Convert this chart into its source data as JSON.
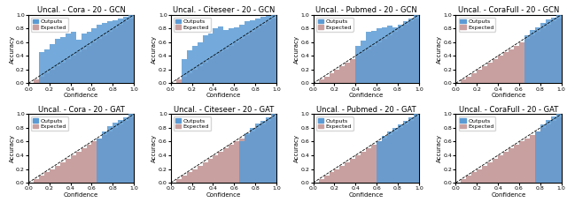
{
  "panels": [
    {
      "title": "Uncal. - Cora - 20 - GCN",
      "outputs": [
        0.0,
        0.0,
        0.45,
        0.5,
        0.57,
        0.65,
        0.68,
        0.72,
        0.75,
        0.63,
        0.72,
        0.75,
        0.8,
        0.85,
        0.88,
        0.9,
        0.92,
        0.95,
        0.97,
        1.0
      ],
      "expected": [
        0.0,
        0.05,
        0.1,
        0.15,
        0.2,
        0.25,
        0.3,
        0.35,
        0.4,
        0.45,
        0.5,
        0.55,
        0.6,
        0.65,
        0.7,
        0.75,
        0.8,
        0.85,
        0.9,
        0.95
      ]
    },
    {
      "title": "Uncal. - Citeseer - 20 - GCN",
      "outputs": [
        0.0,
        0.0,
        0.35,
        0.48,
        0.55,
        0.6,
        0.7,
        0.73,
        0.8,
        0.83,
        0.78,
        0.8,
        0.82,
        0.86,
        0.9,
        0.92,
        0.94,
        0.97,
        0.98,
        1.0
      ],
      "expected": [
        0.0,
        0.05,
        0.1,
        0.15,
        0.2,
        0.25,
        0.3,
        0.35,
        0.4,
        0.45,
        0.5,
        0.55,
        0.6,
        0.65,
        0.7,
        0.75,
        0.8,
        0.85,
        0.9,
        0.95
      ]
    },
    {
      "title": "Uncal. - Pubmed - 20 - GCN",
      "outputs": [
        0.0,
        0.0,
        0.0,
        0.0,
        0.0,
        0.0,
        0.0,
        0.0,
        0.55,
        0.62,
        0.75,
        0.77,
        0.8,
        0.82,
        0.84,
        0.82,
        0.85,
        0.9,
        0.95,
        1.0
      ],
      "expected": [
        0.0,
        0.05,
        0.1,
        0.15,
        0.2,
        0.25,
        0.3,
        0.35,
        0.4,
        0.45,
        0.5,
        0.55,
        0.6,
        0.65,
        0.7,
        0.75,
        0.8,
        0.85,
        0.9,
        0.95
      ]
    },
    {
      "title": "Uncal. - CoraFull - 20 - GCN",
      "outputs": [
        0.0,
        0.0,
        0.0,
        0.0,
        0.0,
        0.0,
        0.0,
        0.0,
        0.0,
        0.0,
        0.0,
        0.0,
        0.0,
        0.7,
        0.78,
        0.82,
        0.88,
        0.93,
        0.96,
        1.0
      ],
      "expected": [
        0.0,
        0.05,
        0.1,
        0.15,
        0.2,
        0.25,
        0.3,
        0.35,
        0.4,
        0.45,
        0.5,
        0.55,
        0.6,
        0.65,
        0.7,
        0.75,
        0.8,
        0.85,
        0.9,
        0.95
      ]
    },
    {
      "title": "Uncal. - Cora - 20 - GAT",
      "outputs": [
        0.0,
        0.0,
        0.0,
        0.0,
        0.0,
        0.0,
        0.0,
        0.0,
        0.0,
        0.0,
        0.0,
        0.0,
        0.0,
        0.65,
        0.75,
        0.82,
        0.88,
        0.92,
        0.95,
        1.0
      ],
      "expected": [
        0.0,
        0.05,
        0.1,
        0.15,
        0.2,
        0.25,
        0.3,
        0.35,
        0.4,
        0.45,
        0.5,
        0.55,
        0.6,
        0.65,
        0.7,
        0.75,
        0.8,
        0.85,
        0.9,
        0.95
      ]
    },
    {
      "title": "Uncal. - Citeseer - 20 - GAT",
      "outputs": [
        0.0,
        0.0,
        0.0,
        0.0,
        0.0,
        0.0,
        0.0,
        0.0,
        0.0,
        0.0,
        0.0,
        0.0,
        0.0,
        0.6,
        0.72,
        0.8,
        0.86,
        0.9,
        0.95,
        1.0
      ],
      "expected": [
        0.0,
        0.05,
        0.1,
        0.15,
        0.2,
        0.25,
        0.3,
        0.35,
        0.4,
        0.45,
        0.5,
        0.55,
        0.6,
        0.65,
        0.7,
        0.75,
        0.8,
        0.85,
        0.9,
        0.95
      ]
    },
    {
      "title": "Uncal. - Pubmed - 20 - GAT",
      "outputs": [
        0.0,
        0.0,
        0.0,
        0.0,
        0.0,
        0.0,
        0.0,
        0.0,
        0.0,
        0.0,
        0.0,
        0.0,
        0.6,
        0.68,
        0.75,
        0.8,
        0.85,
        0.9,
        0.95,
        1.0
      ],
      "expected": [
        0.0,
        0.05,
        0.1,
        0.15,
        0.2,
        0.25,
        0.3,
        0.35,
        0.4,
        0.45,
        0.5,
        0.55,
        0.6,
        0.65,
        0.7,
        0.75,
        0.8,
        0.85,
        0.9,
        0.95
      ]
    },
    {
      "title": "Uncal. - CoraFull - 20 - GAT",
      "outputs": [
        0.0,
        0.0,
        0.0,
        0.0,
        0.0,
        0.0,
        0.0,
        0.0,
        0.0,
        0.0,
        0.0,
        0.0,
        0.0,
        0.0,
        0.0,
        0.75,
        0.85,
        0.92,
        0.96,
        1.0
      ],
      "expected": [
        0.0,
        0.05,
        0.1,
        0.15,
        0.2,
        0.25,
        0.3,
        0.35,
        0.4,
        0.45,
        0.5,
        0.55,
        0.6,
        0.65,
        0.7,
        0.75,
        0.8,
        0.85,
        0.9,
        0.95
      ]
    }
  ],
  "n_bins": 20,
  "bar_width": 0.05,
  "output_color": "#5B9BD5",
  "expected_color": "#C9A0A0",
  "diagonal_color": "black",
  "xlabel": "Confidence",
  "ylabel": "Accuracy",
  "xlim": [
    0.0,
    1.0
  ],
  "ylim": [
    0.0,
    1.0
  ],
  "xticks": [
    0.0,
    0.2,
    0.4,
    0.6,
    0.8,
    1.0
  ],
  "yticks": [
    0.0,
    0.2,
    0.4,
    0.6,
    0.8,
    1.0
  ],
  "legend_outputs": "Outputs",
  "legend_expected": "Expected",
  "title_fontsize": 6,
  "label_fontsize": 5,
  "tick_fontsize": 4.5,
  "legend_fontsize": 4.5
}
